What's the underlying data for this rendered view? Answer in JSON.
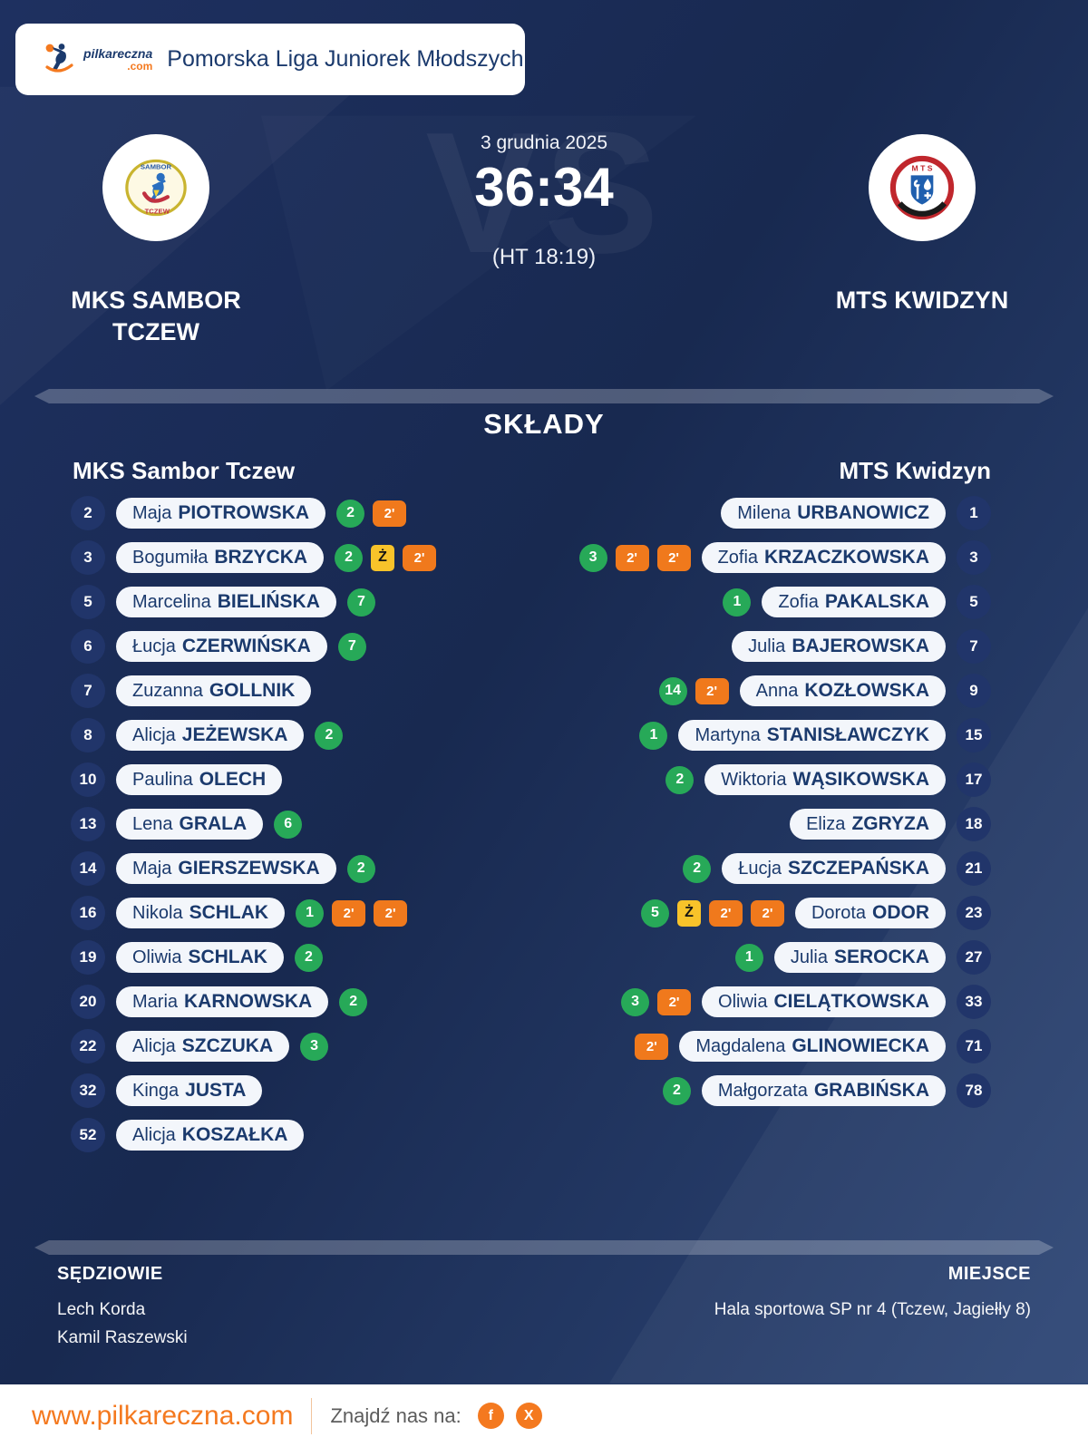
{
  "header": {
    "logo_name": "pilkareczna",
    "logo_tld": ".com",
    "league": "Pomorska Liga Juniorek Młodszych"
  },
  "match": {
    "date": "3 grudnia 2025",
    "score": "36:34",
    "halftime": "(HT 18:19)",
    "vs_watermark": "VS",
    "home": {
      "lines": [
        "MKS SAMBOR",
        "TCZEW"
      ]
    },
    "away": {
      "name": "MTS KWIDZYN"
    }
  },
  "lineups": {
    "title": "SKŁADY",
    "home_header": "MKS Sambor Tczew",
    "away_header": "MTS Kwidzyn",
    "home": [
      {
        "number": "2",
        "first": "Maja",
        "last": "PIOTROWSKA",
        "goals": 2,
        "yellow": false,
        "suspensions": 1
      },
      {
        "number": "3",
        "first": "Bogumiła",
        "last": "BRZYCKA",
        "goals": 2,
        "yellow": true,
        "suspensions": 1
      },
      {
        "number": "5",
        "first": "Marcelina",
        "last": "BIELIŃSKA",
        "goals": 7,
        "yellow": false,
        "suspensions": 0
      },
      {
        "number": "6",
        "first": "Łucja",
        "last": "CZERWIŃSKA",
        "goals": 7,
        "yellow": false,
        "suspensions": 0
      },
      {
        "number": "7",
        "first": "Zuzanna",
        "last": "GOLLNIK",
        "goals": null,
        "yellow": false,
        "suspensions": 0
      },
      {
        "number": "8",
        "first": "Alicja",
        "last": "JEŻEWSKA",
        "goals": 2,
        "yellow": false,
        "suspensions": 0
      },
      {
        "number": "10",
        "first": "Paulina",
        "last": "OLECH",
        "goals": null,
        "yellow": false,
        "suspensions": 0
      },
      {
        "number": "13",
        "first": "Lena",
        "last": "GRALA",
        "goals": 6,
        "yellow": false,
        "suspensions": 0
      },
      {
        "number": "14",
        "first": "Maja",
        "last": "GIERSZEWSKA",
        "goals": 2,
        "yellow": false,
        "suspensions": 0
      },
      {
        "number": "16",
        "first": "Nikola",
        "last": "SCHLAK",
        "goals": 1,
        "yellow": false,
        "suspensions": 2
      },
      {
        "number": "19",
        "first": "Oliwia",
        "last": "SCHLAK",
        "goals": 2,
        "yellow": false,
        "suspensions": 0
      },
      {
        "number": "20",
        "first": "Maria",
        "last": "KARNOWSKA",
        "goals": 2,
        "yellow": false,
        "suspensions": 0
      },
      {
        "number": "22",
        "first": "Alicja",
        "last": "SZCZUKA",
        "goals": 3,
        "yellow": false,
        "suspensions": 0
      },
      {
        "number": "32",
        "first": "Kinga",
        "last": "JUSTA",
        "goals": null,
        "yellow": false,
        "suspensions": 0
      },
      {
        "number": "52",
        "first": "Alicja",
        "last": "KOSZAŁKA",
        "goals": null,
        "yellow": false,
        "suspensions": 0
      }
    ],
    "away": [
      {
        "number": "1",
        "first": "Milena",
        "last": "URBANOWICZ",
        "goals": null,
        "yellow": false,
        "suspensions": 0
      },
      {
        "number": "3",
        "first": "Zofia",
        "last": "KRZACZKOWSKA",
        "goals": 3,
        "yellow": false,
        "suspensions": 2
      },
      {
        "number": "5",
        "first": "Zofia",
        "last": "PAKALSKA",
        "goals": 1,
        "yellow": false,
        "suspensions": 0
      },
      {
        "number": "7",
        "first": "Julia",
        "last": "BAJEROWSKA",
        "goals": null,
        "yellow": false,
        "suspensions": 0
      },
      {
        "number": "9",
        "first": "Anna",
        "last": "KOZŁOWSKA",
        "goals": 14,
        "yellow": false,
        "suspensions": 1
      },
      {
        "number": "15",
        "first": "Martyna",
        "last": "STANISŁAWCZYK",
        "goals": 1,
        "yellow": false,
        "suspensions": 0
      },
      {
        "number": "17",
        "first": "Wiktoria",
        "last": "WĄSIKOWSKA",
        "goals": 2,
        "yellow": false,
        "suspensions": 0
      },
      {
        "number": "18",
        "first": "Eliza",
        "last": "ZGRYZA",
        "goals": null,
        "yellow": false,
        "suspensions": 0
      },
      {
        "number": "21",
        "first": "Łucja",
        "last": "SZCZEPAŃSKA",
        "goals": 2,
        "yellow": false,
        "suspensions": 0
      },
      {
        "number": "23",
        "first": "Dorota",
        "last": "ODOR",
        "goals": 5,
        "yellow": true,
        "suspensions": 2
      },
      {
        "number": "27",
        "first": "Julia",
        "last": "SEROCKA",
        "goals": 1,
        "yellow": false,
        "suspensions": 0
      },
      {
        "number": "33",
        "first": "Oliwia",
        "last": "CIELĄTKOWSKA",
        "goals": 3,
        "yellow": false,
        "suspensions": 1
      },
      {
        "number": "71",
        "first": "Magdalena",
        "last": "GLINOWIECKA",
        "goals": null,
        "yellow": false,
        "suspensions": 1
      },
      {
        "number": "78",
        "first": "Małgorzata",
        "last": "GRABIŃSKA",
        "goals": 2,
        "yellow": false,
        "suspensions": 0
      }
    ]
  },
  "badges": {
    "suspension": "2'",
    "yellow": "Ż"
  },
  "footer": {
    "referees_label": "SĘDZIOWIE",
    "referees": [
      "Lech Korda",
      "Kamil Raszewski"
    ],
    "venue_label": "MIEJSCE",
    "venue": "Hala sportowa SP nr 4 (Tczew, Jagiełły 8)"
  },
  "bottom": {
    "site": "www.pilkareczna.com",
    "find_us": "Znajdź nas na:",
    "social": [
      {
        "name": "facebook",
        "glyph": "f"
      },
      {
        "name": "x",
        "glyph": "X"
      }
    ]
  },
  "colors": {
    "background_navy": "#1b2c57",
    "accent_orange": "#f4791f",
    "goal_green": "#27a958",
    "card_yellow": "#f8c32a",
    "suspension_orange": "#f0791c",
    "navy_text": "#1b3a6d"
  }
}
